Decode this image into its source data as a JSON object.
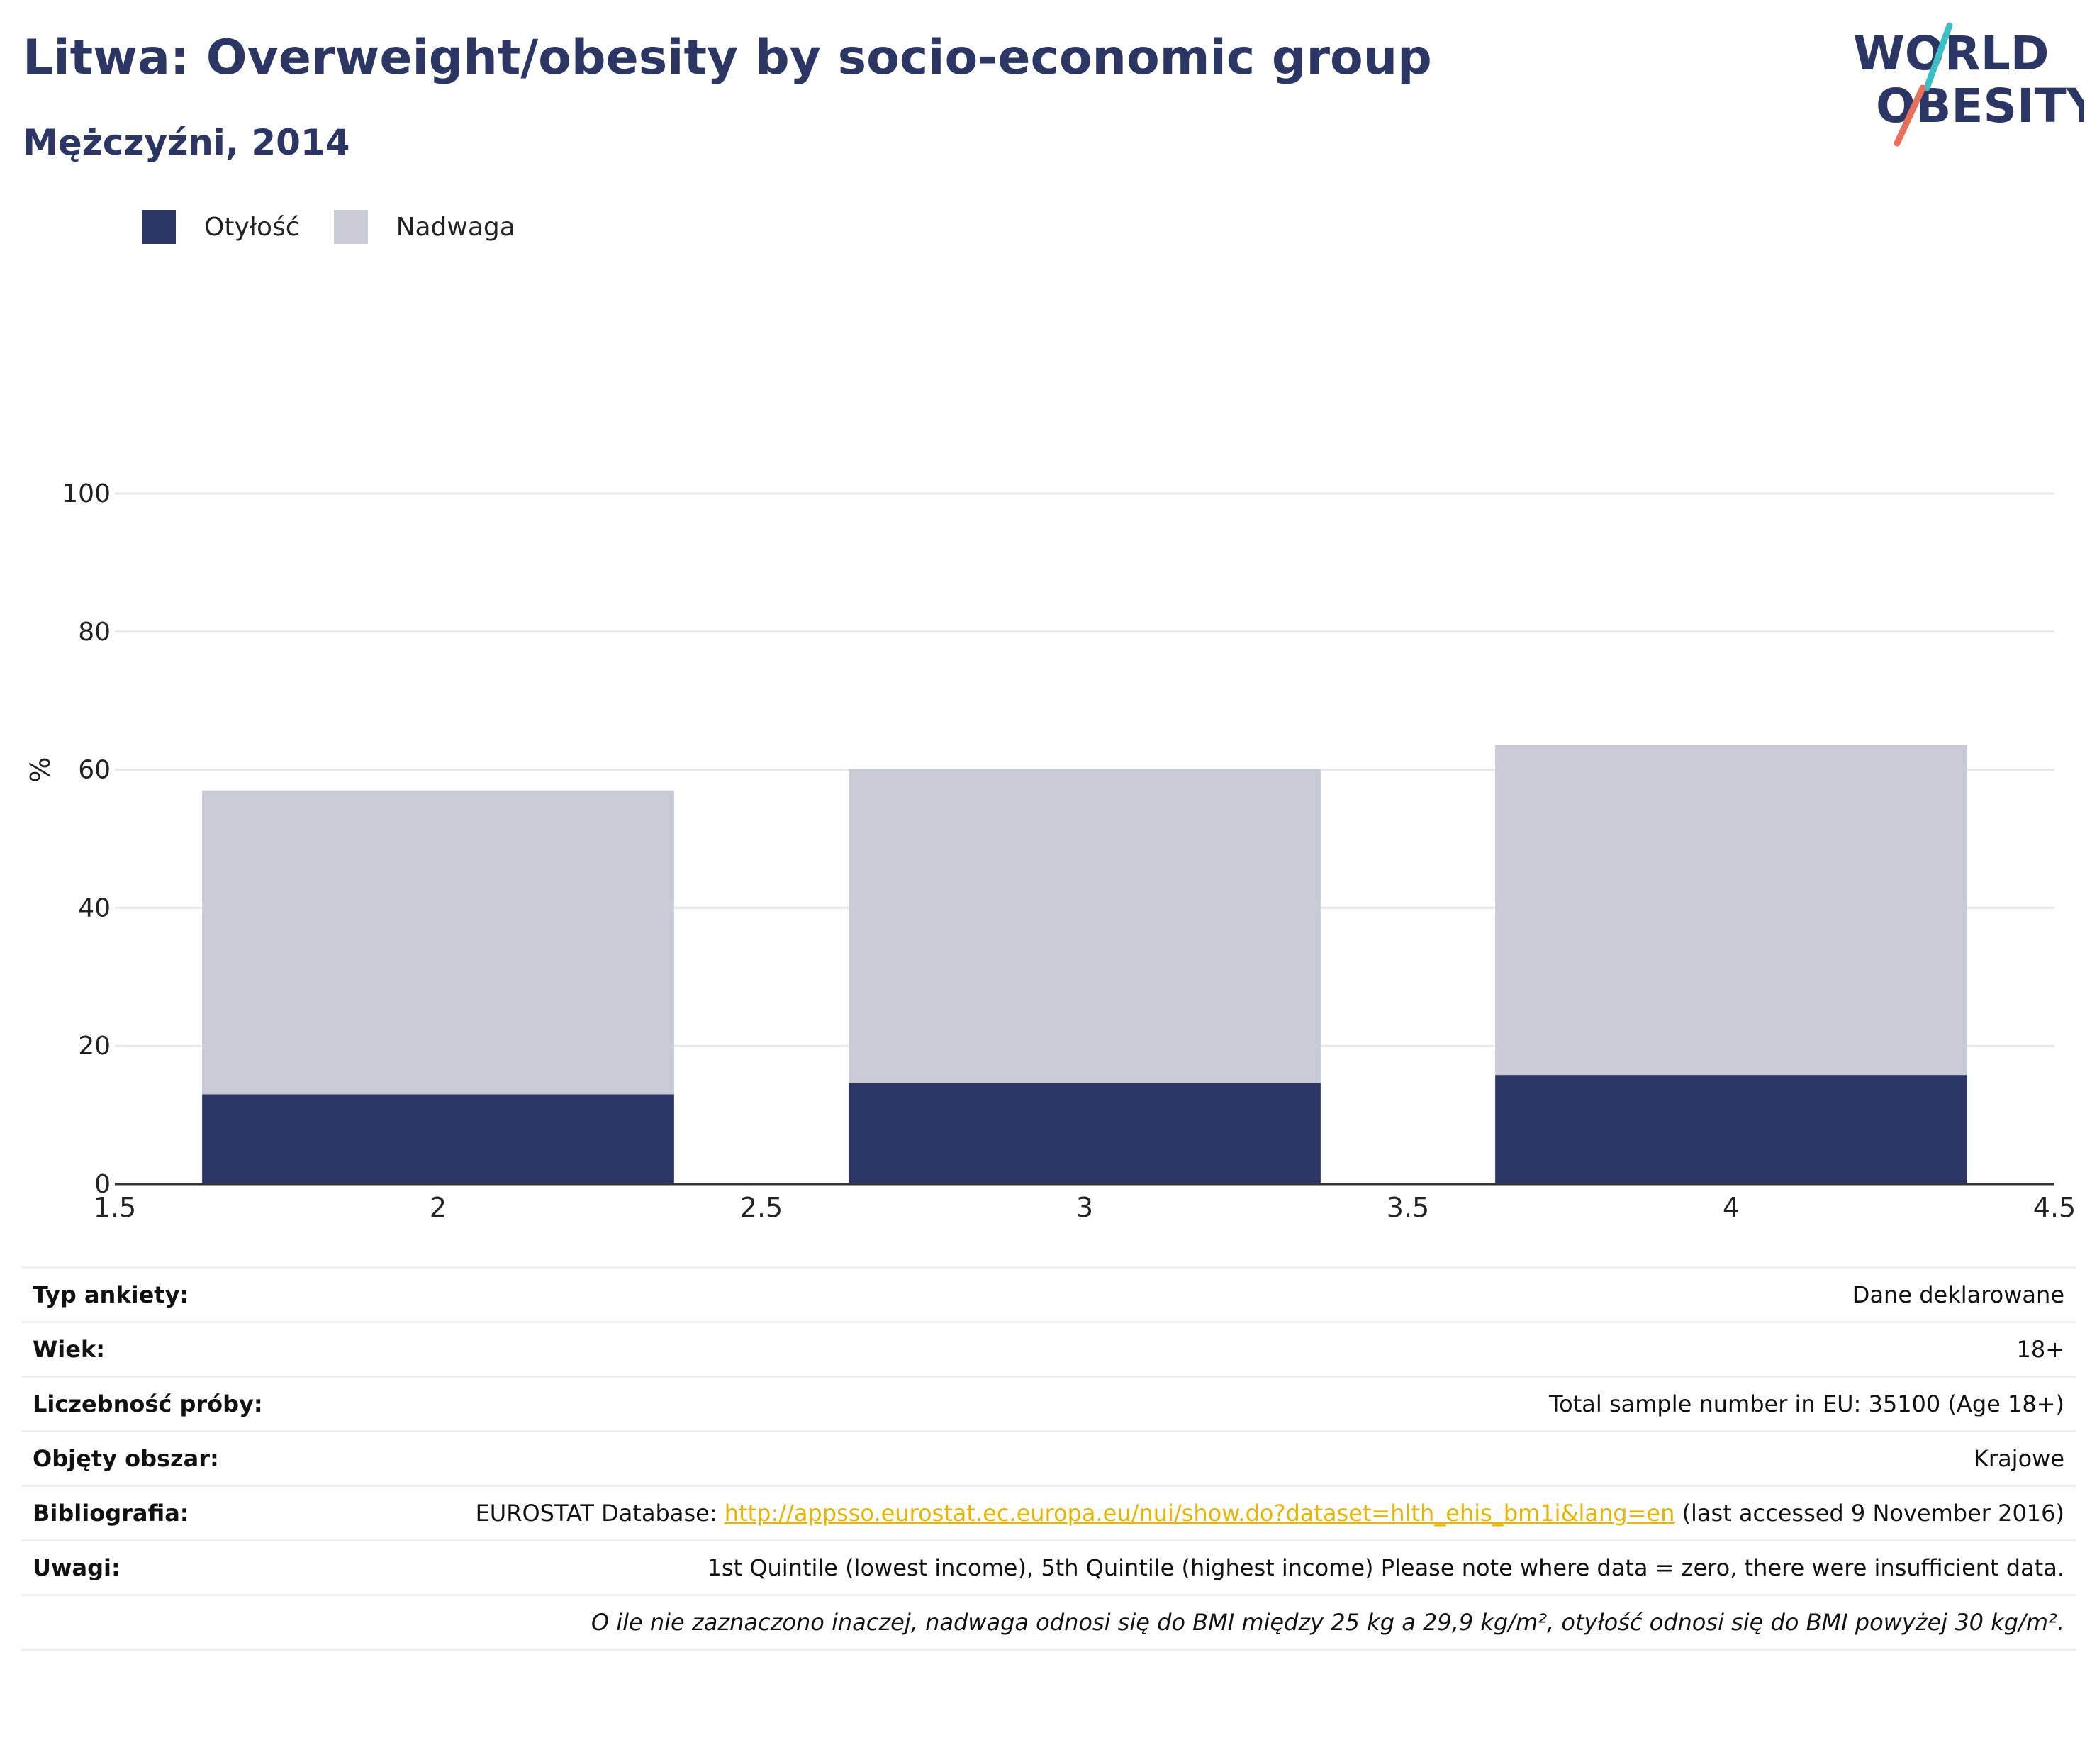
{
  "header": {
    "title": "Litwa: Overweight/obesity by socio-economic group",
    "subtitle": "Mężczyźni, 2014"
  },
  "logo": {
    "line1": "WORLD",
    "line2": "OBESITY",
    "text_color": "#2b3664",
    "accent_teal": "#3bbfc4",
    "accent_coral": "#e8705a"
  },
  "legend": {
    "items": [
      {
        "label": "Otyłość",
        "color": "#2b3664"
      },
      {
        "label": "Nadwaga",
        "color": "#c9ccd6"
      }
    ]
  },
  "chart_data": {
    "type": "bar",
    "stacked": true,
    "x": [
      2,
      3,
      4
    ],
    "series": [
      {
        "name": "Otyłość",
        "color": "#2b3664",
        "values": [
          13,
          14.6,
          15.8
        ]
      },
      {
        "name": "Nadwaga",
        "color": "#c9ccd6",
        "values": [
          44,
          45.5,
          47.8
        ]
      }
    ],
    "ylabel": "%",
    "xlim": [
      1.5,
      4.5
    ],
    "ylim": [
      0,
      100
    ],
    "xticks": [
      "1.5",
      "2",
      "2.5",
      "3",
      "3.5",
      "4",
      "4.5"
    ],
    "yticks": [
      "0",
      "20",
      "40",
      "60",
      "80",
      "100"
    ],
    "grid": true,
    "legend_position": "top-left"
  },
  "info": {
    "survey_type_label": "Typ ankiety:",
    "survey_type_value": "Dane deklarowane",
    "age_label": "Wiek:",
    "age_value": "18+",
    "sample_label": "Liczebność próby:",
    "sample_value": "Total sample number in EU: 35100 (Age 18+)",
    "area_label": "Objęty obszar:",
    "area_value": "Krajowe",
    "biblio_label": "Bibliografia:",
    "biblio_prefix": "EUROSTAT Database: ",
    "biblio_link": "http://appsso.eurostat.ec.europa.eu/nui/show.do?dataset=hlth_ehis_bm1i&lang=en",
    "biblio_suffix": " (last accessed 9 November 2016)",
    "notes_label": "Uwagi:",
    "notes_value": "1st Quintile (lowest income), 5th Quintile (highest income) Please note where data = zero, there were insufficient data.",
    "footnote": "O ile nie zaznaczono inaczej, nadwaga odnosi się do BMI między 25 kg a 29,9 kg/m², otyłość odnosi się do BMI powyżej 30 kg/m²."
  }
}
